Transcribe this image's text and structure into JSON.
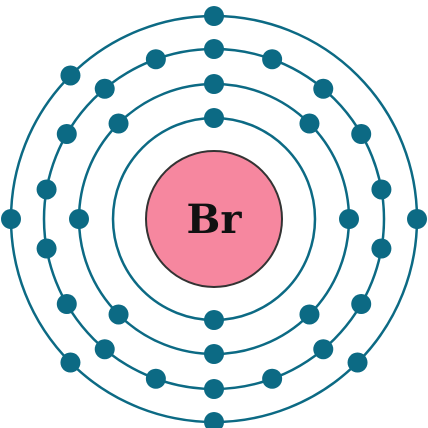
{
  "element": {
    "symbol": "Br",
    "nucleus_color": "#f6879f",
    "nucleus_stroke": "#333333"
  },
  "orbit_color": "#0c6a84",
  "electron_color": "#0c6a84",
  "shells": [
    {
      "name": "shell-1",
      "electrons": 2
    },
    {
      "name": "shell-2",
      "electrons": 8
    },
    {
      "name": "shell-3",
      "electrons": 18
    },
    {
      "name": "shell-4",
      "electrons": 7
    }
  ]
}
